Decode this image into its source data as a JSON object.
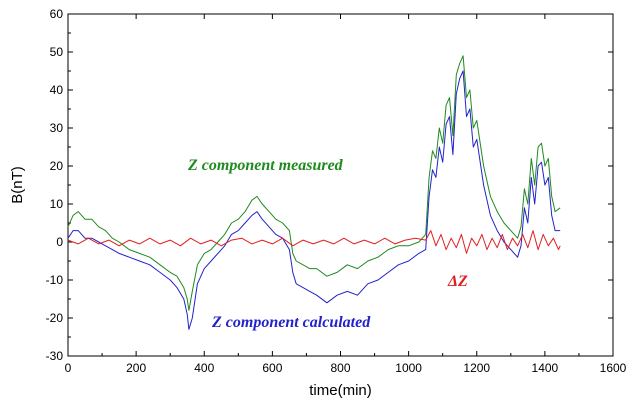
{
  "chart_data": {
    "type": "line",
    "xlabel": "time(min)",
    "ylabel": "B(nT)",
    "xlim": [
      0,
      1600
    ],
    "ylim": [
      -30,
      60
    ],
    "xticks": [
      0,
      200,
      400,
      600,
      800,
      1000,
      1200,
      1400,
      1600
    ],
    "yticks": [
      -30,
      -20,
      -10,
      0,
      10,
      20,
      30,
      40,
      50,
      60
    ],
    "grid": false,
    "annotations": [
      {
        "text": "Z component measured",
        "color": "#1f8a1f"
      },
      {
        "text": "Z component calculated",
        "color": "#2222cc"
      },
      {
        "text": "ΔZ",
        "color": "#e02020"
      }
    ],
    "series": [
      {
        "color": "#1f8a1f",
        "x": [
          0,
          15,
          30,
          50,
          70,
          90,
          110,
          130,
          150,
          180,
          210,
          240,
          270,
          300,
          320,
          340,
          350,
          355,
          365,
          380,
          400,
          420,
          440,
          460,
          480,
          500,
          520,
          540,
          555,
          570,
          590,
          610,
          630,
          650,
          660,
          670,
          690,
          710,
          730,
          760,
          790,
          820,
          850,
          880,
          910,
          940,
          970,
          1000,
          1030,
          1050,
          1060,
          1070,
          1080,
          1090,
          1100,
          1110,
          1120,
          1130,
          1140,
          1150,
          1160,
          1170,
          1180,
          1190,
          1200,
          1220,
          1240,
          1260,
          1280,
          1300,
          1320,
          1330,
          1340,
          1350,
          1360,
          1370,
          1380,
          1390,
          1400,
          1410,
          1420,
          1430,
          1445
        ],
        "y": [
          4,
          7,
          8,
          6,
          6,
          4,
          3,
          1,
          0,
          -2,
          -3,
          -4,
          -6,
          -8,
          -9,
          -12,
          -15,
          -18,
          -13,
          -6,
          -3,
          -2,
          0,
          2,
          5,
          6,
          8,
          11,
          12,
          10,
          8,
          6,
          5,
          3,
          -3,
          -5,
          -6,
          -7,
          -7,
          -9,
          -8,
          -6,
          -7,
          -5,
          -4,
          -2,
          -1,
          -1,
          0,
          2,
          17,
          24,
          22,
          30,
          26,
          36,
          38,
          28,
          44,
          47,
          49,
          38,
          40,
          30,
          32,
          20,
          12,
          8,
          5,
          3,
          1,
          4,
          14,
          10,
          22,
          15,
          25,
          26,
          20,
          22,
          12,
          8,
          9
        ]
      },
      {
        "color": "#2222cc",
        "x": [
          0,
          15,
          30,
          50,
          70,
          90,
          110,
          130,
          150,
          180,
          210,
          240,
          270,
          300,
          320,
          340,
          350,
          355,
          365,
          380,
          400,
          420,
          440,
          460,
          480,
          500,
          520,
          540,
          555,
          570,
          590,
          610,
          630,
          650,
          660,
          670,
          690,
          710,
          730,
          760,
          790,
          820,
          850,
          880,
          910,
          940,
          970,
          1000,
          1030,
          1050,
          1060,
          1070,
          1080,
          1090,
          1100,
          1110,
          1120,
          1130,
          1140,
          1150,
          1160,
          1170,
          1180,
          1190,
          1200,
          1220,
          1240,
          1260,
          1280,
          1300,
          1320,
          1330,
          1340,
          1350,
          1360,
          1370,
          1380,
          1390,
          1400,
          1410,
          1420,
          1430,
          1445
        ],
        "y": [
          1,
          3,
          3,
          1,
          1,
          0,
          -1,
          -2,
          -3,
          -4,
          -5,
          -6,
          -8,
          -10,
          -12,
          -15,
          -19,
          -23,
          -20,
          -11,
          -7,
          -5,
          -3,
          -1,
          2,
          3,
          5,
          7,
          8,
          6,
          4,
          2,
          1,
          -2,
          -8,
          -11,
          -12,
          -13,
          -14,
          -16,
          -14,
          -13,
          -14,
          -11,
          -10,
          -8,
          -6,
          -5,
          -3,
          -2,
          12,
          19,
          17,
          25,
          21,
          31,
          33,
          23,
          39,
          43,
          45,
          33,
          35,
          25,
          27,
          15,
          7,
          3,
          0,
          -2,
          -4,
          -1,
          9,
          5,
          17,
          10,
          20,
          21,
          15,
          17,
          7,
          3,
          3
        ]
      },
      {
        "color": "#e02020",
        "x": [
          0,
          30,
          60,
          90,
          120,
          150,
          180,
          210,
          240,
          270,
          300,
          330,
          360,
          390,
          420,
          450,
          480,
          510,
          540,
          570,
          600,
          630,
          660,
          690,
          720,
          750,
          780,
          810,
          840,
          870,
          900,
          930,
          960,
          990,
          1020,
          1050,
          1065,
          1080,
          1095,
          1110,
          1125,
          1140,
          1155,
          1170,
          1185,
          1200,
          1215,
          1230,
          1245,
          1260,
          1275,
          1290,
          1305,
          1320,
          1335,
          1350,
          1365,
          1380,
          1395,
          1410,
          1425,
          1440,
          1445
        ],
        "y": [
          0.5,
          -0.5,
          1,
          -0.5,
          0.5,
          -1,
          0.5,
          -0.5,
          1,
          -0.5,
          0.5,
          -1,
          1,
          -0.5,
          0.5,
          -1,
          0.5,
          1,
          -0.5,
          0.5,
          -0.5,
          1,
          -1,
          0.5,
          -0.5,
          0.5,
          -0.5,
          1,
          -0.5,
          0.5,
          -0.5,
          1,
          -0.5,
          0.5,
          1,
          0.5,
          3,
          -1,
          2,
          -2,
          1,
          -1.5,
          2,
          -3,
          1,
          -1,
          2,
          -2,
          1,
          -1.5,
          2,
          -2,
          1,
          -1,
          2,
          -1.5,
          3,
          -2,
          2,
          -1,
          1,
          -2,
          -1
        ]
      }
    ]
  }
}
